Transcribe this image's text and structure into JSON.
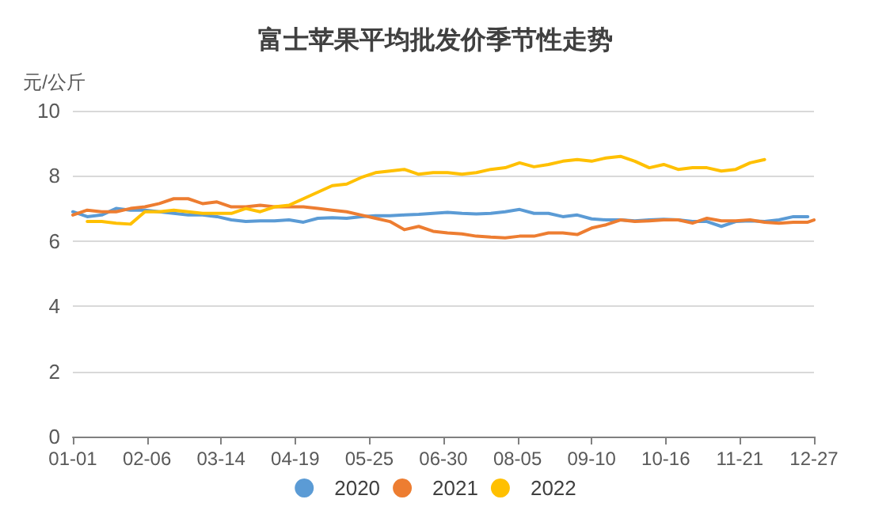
{
  "chart_data": {
    "type": "line",
    "title": "富士苹果平均批发价季节性走势",
    "ylabel": "元/公斤",
    "x": [
      "--01-01",
      "--01-08",
      "--01-15",
      "--01-22",
      "--01-29",
      "--02-05",
      "--02-12",
      "--02-19",
      "--02-26",
      "--03-05",
      "--03-12",
      "--03-19",
      "--03-26",
      "--04-02",
      "--04-09",
      "--04-16",
      "--04-23",
      "--04-30",
      "--05-07",
      "--05-14",
      "--05-21",
      "--05-28",
      "--06-04",
      "--06-11",
      "--06-18",
      "--06-25",
      "--07-02",
      "--07-09",
      "--07-16",
      "--07-23",
      "--07-30",
      "--08-06",
      "--08-13",
      "--08-20",
      "--08-27",
      "--09-03",
      "--09-10",
      "--09-17",
      "--09-24",
      "--10-01",
      "--10-08",
      "--10-15",
      "--10-22",
      "--10-29",
      "--11-05",
      "--11-12",
      "--11-19",
      "--11-26",
      "--12-03",
      "--12-10",
      "--12-17",
      "--12-24",
      "--12-27"
    ],
    "series": [
      {
        "name": "2020",
        "color": "#5b9bd5",
        "values": [
          6.9,
          6.75,
          6.8,
          7.0,
          6.95,
          6.95,
          6.9,
          6.85,
          6.8,
          6.8,
          6.75,
          6.65,
          6.6,
          6.62,
          6.62,
          6.65,
          6.58,
          6.7,
          6.72,
          6.7,
          6.75,
          6.78,
          6.78,
          6.8,
          6.82,
          6.85,
          6.88,
          6.85,
          6.83,
          6.85,
          6.9,
          6.97,
          6.85,
          6.85,
          6.75,
          6.8,
          6.68,
          6.65,
          6.65,
          6.62,
          6.65,
          6.67,
          6.65,
          6.6,
          6.6,
          6.45,
          6.6,
          6.62,
          6.6,
          6.65,
          6.75,
          6.75,
          null
        ]
      },
      {
        "name": "2021",
        "color": "#ed7d31",
        "values": [
          6.8,
          6.95,
          6.9,
          6.9,
          7.0,
          7.05,
          7.15,
          7.3,
          7.3,
          7.15,
          7.2,
          7.05,
          7.05,
          7.1,
          7.05,
          7.05,
          7.05,
          7.0,
          6.95,
          6.9,
          6.8,
          6.7,
          6.6,
          6.35,
          6.45,
          6.3,
          6.25,
          6.22,
          6.15,
          6.12,
          6.1,
          6.15,
          6.15,
          6.25,
          6.25,
          6.2,
          6.4,
          6.5,
          6.65,
          6.6,
          6.62,
          6.65,
          6.65,
          6.55,
          6.7,
          6.62,
          6.62,
          6.65,
          6.58,
          6.55,
          6.58,
          6.58,
          6.65
        ]
      },
      {
        "name": "2022",
        "color": "#ffc000",
        "values": [
          null,
          6.6,
          6.6,
          6.55,
          6.52,
          6.9,
          6.9,
          6.95,
          6.9,
          6.85,
          6.85,
          6.85,
          7.0,
          6.9,
          7.05,
          7.1,
          7.3,
          7.5,
          7.7,
          7.75,
          7.95,
          8.1,
          8.15,
          8.2,
          8.05,
          8.1,
          8.1,
          8.05,
          8.1,
          8.2,
          8.25,
          8.4,
          8.28,
          8.35,
          8.45,
          8.5,
          8.45,
          8.55,
          8.6,
          8.45,
          8.25,
          8.35,
          8.2,
          8.25,
          8.25,
          8.15,
          8.2,
          8.4,
          8.5,
          null,
          null,
          null,
          null
        ]
      }
    ],
    "xlim": [
      "--01-01",
      "--12-27"
    ],
    "xticks": [
      {
        "value": "--01-01",
        "label": "01-01"
      },
      {
        "value": "--02-06",
        "label": "02-06"
      },
      {
        "value": "--03-14",
        "label": "03-14"
      },
      {
        "value": "--04-19",
        "label": "04-19"
      },
      {
        "value": "--05-25",
        "label": "05-25"
      },
      {
        "value": "--06-30",
        "label": "06-30"
      },
      {
        "value": "--08-05",
        "label": "08-05"
      },
      {
        "value": "--09-10",
        "label": "09-10"
      },
      {
        "value": "--10-16",
        "label": "10-16"
      },
      {
        "value": "--11-21",
        "label": "11-21"
      },
      {
        "value": "--12-27",
        "label": "12-27"
      }
    ],
    "ylim": [
      0,
      10
    ],
    "yticks": [
      0,
      2,
      4,
      6,
      8,
      10
    ],
    "grid": "y",
    "legend": "bottom",
    "marker": "none",
    "line_style": "solid"
  }
}
